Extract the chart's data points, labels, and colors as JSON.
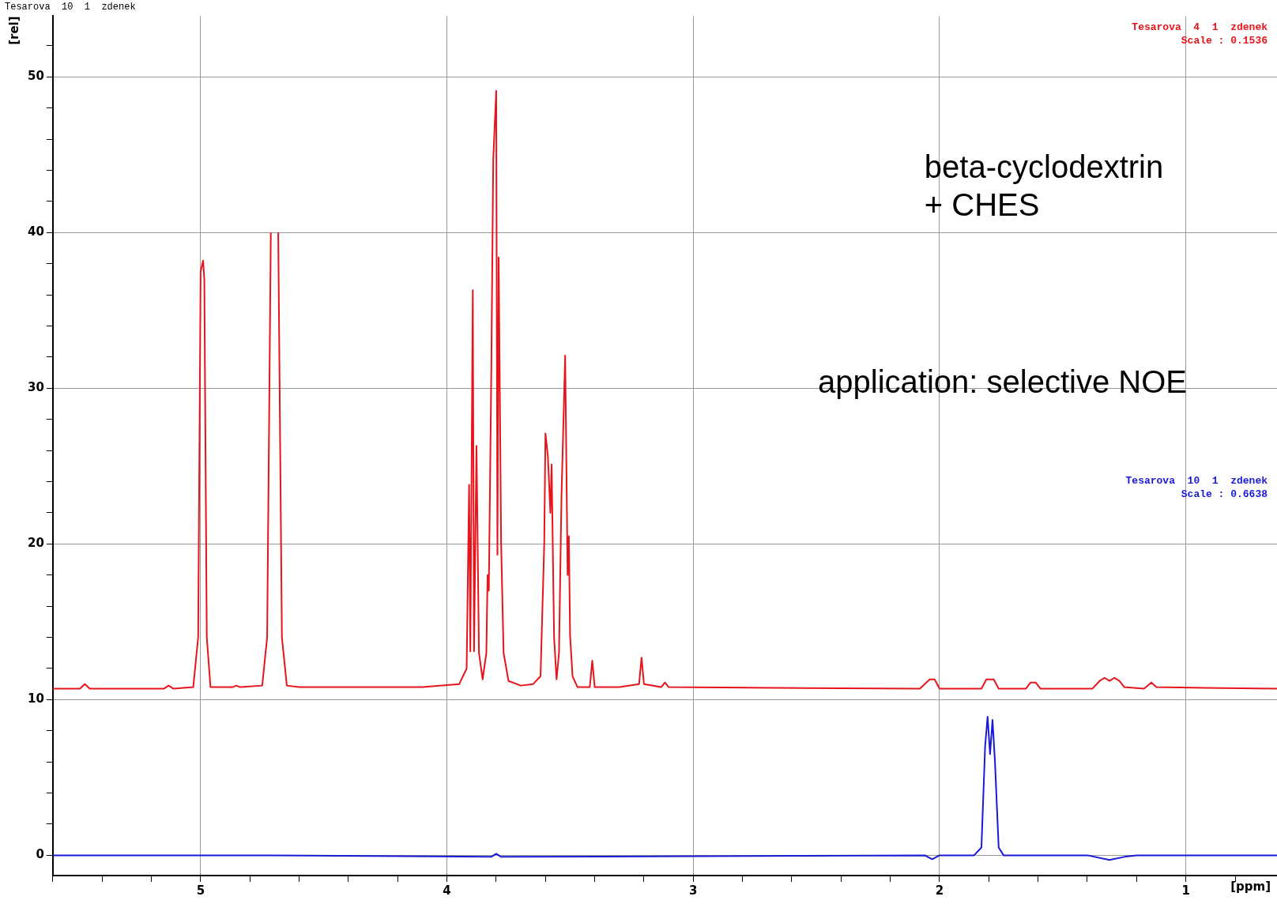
{
  "chart_data": {
    "type": "line",
    "title": "Tesarova  10  1  zdenek",
    "xlabel": "[ppm]",
    "ylabel": "[rel]",
    "xlim": [
      5.6,
      0.63
    ],
    "ylim": [
      -1.3,
      53.9
    ],
    "xticks": [
      {
        "value": 5.6,
        "label": null
      },
      {
        "value": 5.4,
        "label": null
      },
      {
        "value": 5.2,
        "label": null
      },
      5,
      {
        "value": 4.8,
        "label": null
      },
      {
        "value": 4.6,
        "label": null
      },
      {
        "value": 4.4,
        "label": null
      },
      {
        "value": 4.2,
        "label": null
      },
      4,
      {
        "value": 3.8,
        "label": null
      },
      {
        "value": 3.6,
        "label": null
      },
      {
        "value": 3.4,
        "label": null
      },
      {
        "value": 3.2,
        "label": null
      },
      3,
      {
        "value": 2.8,
        "label": null
      },
      {
        "value": 2.6,
        "label": null
      },
      {
        "value": 2.4,
        "label": null
      },
      {
        "value": 2.2,
        "label": null
      },
      2,
      {
        "value": 1.8,
        "label": null
      },
      {
        "value": 1.6,
        "label": null
      },
      {
        "value": 1.4,
        "label": null
      },
      {
        "value": 1.2,
        "label": null
      },
      1,
      {
        "value": 0.8,
        "label": null
      }
    ],
    "yticks": [
      0,
      {
        "value": 2,
        "label": null
      },
      {
        "value": 4,
        "label": null
      },
      {
        "value": 6,
        "label": null
      },
      {
        "value": 8,
        "label": null
      },
      10,
      {
        "value": 12,
        "label": null
      },
      {
        "value": 14,
        "label": null
      },
      {
        "value": 16,
        "label": null
      },
      {
        "value": 18,
        "label": null
      },
      20,
      {
        "value": 22,
        "label": null
      },
      {
        "value": 24,
        "label": null
      },
      {
        "value": 26,
        "label": null
      },
      {
        "value": 28,
        "label": null
      },
      30,
      {
        "value": 32,
        "label": null
      },
      {
        "value": 34,
        "label": null
      },
      {
        "value": 36,
        "label": null
      },
      {
        "value": 38,
        "label": null
      },
      40,
      {
        "value": 42,
        "label": null
      },
      {
        "value": 44,
        "label": null
      },
      {
        "value": 46,
        "label": null
      },
      {
        "value": 48,
        "label": null
      },
      50,
      {
        "value": 52,
        "label": null
      }
    ],
    "grid": true,
    "legend": "top right",
    "marker": "none",
    "line_style": "solid",
    "series": [
      {
        "name": "Tesarova  4  1  zdenek\nScale : 0.1536",
        "color": "#e8141b",
        "x": [
          5.6,
          5.49,
          5.47,
          5.45,
          5.15,
          5.13,
          5.11,
          5.03,
          5.01,
          5.0,
          4.99,
          4.985,
          4.975,
          4.96,
          4.87,
          4.855,
          4.84,
          4.75,
          4.73,
          4.715,
          4.705,
          4.695,
          4.685,
          4.67,
          4.65,
          4.6,
          4.1,
          3.95,
          3.92,
          3.91,
          3.905,
          3.895,
          3.89,
          3.88,
          3.87,
          3.855,
          3.84,
          3.835,
          3.83,
          3.82,
          3.812,
          3.8,
          3.795,
          3.79,
          3.78,
          3.77,
          3.75,
          3.7,
          3.65,
          3.62,
          3.605,
          3.6,
          3.59,
          3.58,
          3.575,
          3.565,
          3.555,
          3.545,
          3.535,
          3.52,
          3.51,
          3.505,
          3.5,
          3.49,
          3.47,
          3.42,
          3.41,
          3.4,
          3.3,
          3.22,
          3.21,
          3.2,
          3.13,
          3.115,
          3.1,
          2.08,
          2.04,
          2.02,
          2.0,
          1.83,
          1.81,
          1.78,
          1.76,
          1.65,
          1.63,
          1.61,
          1.59,
          1.38,
          1.35,
          1.33,
          1.31,
          1.29,
          1.27,
          1.25,
          1.17,
          1.14,
          1.12,
          0.63
        ],
        "values": [
          10.7,
          10.7,
          11.0,
          10.7,
          10.7,
          10.9,
          10.7,
          10.8,
          14,
          37.5,
          38.2,
          37,
          14,
          10.8,
          10.8,
          10.9,
          10.8,
          10.9,
          14,
          40,
          null,
          null,
          40,
          14,
          10.9,
          10.8,
          10.8,
          11.0,
          12,
          23.8,
          13.1,
          36.3,
          13.1,
          26.3,
          13,
          11.3,
          13,
          18.0,
          17,
          30.9,
          44.7,
          49.1,
          19.3,
          38.4,
          20,
          13,
          11.2,
          10.9,
          11.0,
          11.5,
          20,
          27.1,
          25.6,
          22,
          25.1,
          14,
          11.3,
          13,
          23.0,
          32.1,
          18,
          20.5,
          14.1,
          11.5,
          10.8,
          10.8,
          12.5,
          10.8,
          10.8,
          11,
          12.7,
          11,
          10.8,
          11.1,
          10.8,
          10.7,
          11.3,
          11.3,
          10.7,
          10.7,
          11.3,
          11.3,
          10.7,
          10.7,
          11.1,
          11.1,
          10.7,
          10.7,
          11.2,
          11.4,
          11.2,
          11.4,
          11.2,
          10.8,
          10.7,
          11.1,
          10.8,
          10.7
        ]
      },
      {
        "name": "Tesarova  10  1  zdenek\nScale : 0.6638",
        "color": "#1a1ad6",
        "x": [
          5.6,
          4.7,
          3.82,
          3.8,
          3.78,
          2.06,
          2.03,
          2.0,
          1.86,
          1.83,
          1.815,
          1.805,
          1.795,
          1.785,
          1.775,
          1.76,
          1.74,
          1.4,
          1.31,
          1.25,
          1.2,
          0.63
        ],
        "values": [
          0,
          0,
          -0.1,
          0.1,
          -0.1,
          0,
          -0.25,
          0,
          0,
          0.5,
          7,
          8.9,
          6.5,
          8.7,
          6,
          0.5,
          0,
          0,
          -0.3,
          -0.1,
          0,
          0
        ]
      }
    ],
    "annotations": [
      "beta-cyclodextrin\n+ CHES",
      "application: selective NOE"
    ]
  }
}
